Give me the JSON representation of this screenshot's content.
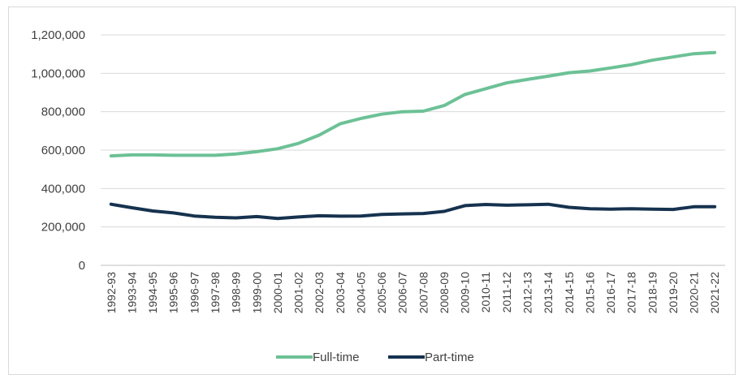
{
  "chart_data": {
    "type": "line",
    "categories": [
      "1992-93",
      "1993-94",
      "1994-95",
      "1995-96",
      "1996-97",
      "1997-98",
      "1998-99",
      "1999-00",
      "2000-01",
      "2001-02",
      "2002-03",
      "2003-04",
      "2004-05",
      "2005-06",
      "2006-07",
      "2007-08",
      "2008-09",
      "2009-10",
      "2010-11",
      "2011-12",
      "2012-13",
      "2013-14",
      "2014-15",
      "2015-16",
      "2016-17",
      "2017-18",
      "2018-19",
      "2019-20",
      "2020-21",
      "2021-22"
    ],
    "series": [
      {
        "name": "Full-time",
        "color": "#6cc196",
        "values": [
          570000,
          575000,
          575000,
          573000,
          573000,
          573000,
          580000,
          592000,
          607000,
          635000,
          678000,
          737000,
          765000,
          787000,
          800000,
          803000,
          832000,
          890000,
          920000,
          950000,
          968000,
          985000,
          1003000,
          1012000,
          1028000,
          1045000,
          1068000,
          1085000,
          1102000,
          1108000
        ]
      },
      {
        "name": "Part-time",
        "color": "#16324f",
        "values": [
          318000,
          300000,
          283000,
          273000,
          257000,
          250000,
          247000,
          254000,
          244000,
          252000,
          258000,
          256000,
          257000,
          265000,
          268000,
          270000,
          281000,
          311000,
          317000,
          313000,
          315000,
          318000,
          302000,
          295000,
          293000,
          295000,
          293000,
          291000,
          305000,
          305000
        ]
      }
    ],
    "y_ticks": [
      "0",
      "200,000",
      "400,000",
      "600,000",
      "800,000",
      "1,000,000",
      "1,200,000"
    ],
    "ylim": [
      0,
      1200000
    ],
    "grid": true,
    "legend_position": "bottom"
  }
}
